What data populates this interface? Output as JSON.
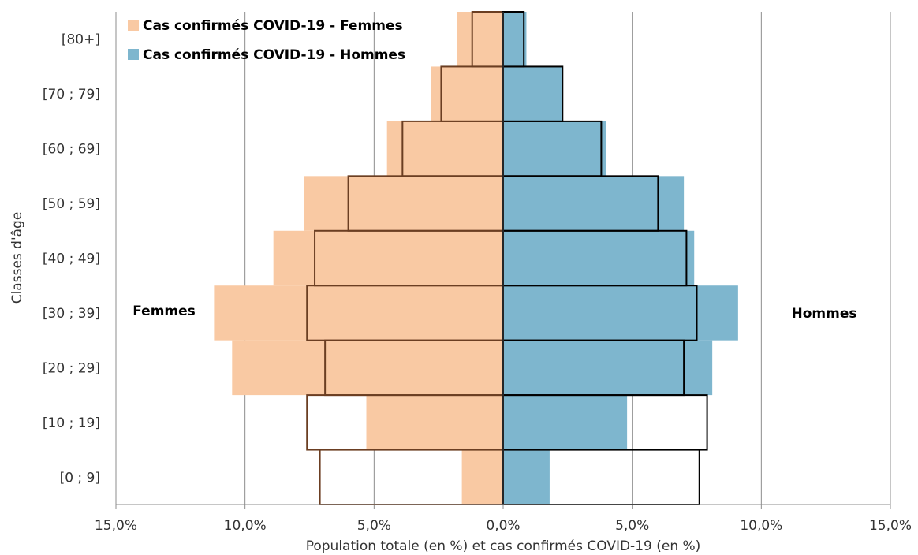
{
  "chart_data": {
    "type": "bar",
    "subtype": "population-pyramid",
    "categories": [
      "[0 ; 9]",
      "[10 ; 19]",
      "[20 ; 29]",
      "[30 ; 39]",
      "[40 ; 49]",
      "[50 ; 59]",
      "[60 ; 69]",
      "[70 ; 79]",
      "[80+]"
    ],
    "series": [
      {
        "name": "Cas confirmés COVID-19 - Femmes",
        "side": "left",
        "color": "#F9C9A3",
        "values": [
          1.6,
          5.3,
          10.5,
          11.2,
          8.9,
          7.7,
          4.5,
          2.8,
          1.8
        ]
      },
      {
        "name": "Cas confirmés COVID-19 - Hommes",
        "side": "right",
        "color": "#7EB6CE",
        "values": [
          1.8,
          4.8,
          8.1,
          9.1,
          7.4,
          7.0,
          4.0,
          2.3,
          0.9
        ]
      }
    ],
    "population_outline": {
      "femmes_values": [
        7.1,
        7.6,
        6.9,
        7.6,
        7.3,
        6.0,
        3.9,
        2.4,
        1.2
      ],
      "hommes_values": [
        7.6,
        7.9,
        7.0,
        7.5,
        7.1,
        6.0,
        3.8,
        2.3,
        0.8
      ],
      "outline_color_femmes": "#6B3E22",
      "outline_color_hommes": "#000000"
    },
    "x_ticks": [
      -15,
      -10,
      -5,
      0,
      5,
      10,
      15
    ],
    "x_tick_labels": [
      "15,0%",
      "10,0%",
      "5,0%",
      "0,0%",
      "5,0%",
      "10,0%",
      "15,0%"
    ],
    "xlim": [
      -15,
      15
    ],
    "xlabel": "Population totale (en %) et cas confirmés COVID-19 (en %)",
    "ylabel": "Classes d'âge",
    "side_labels": {
      "left": "Femmes",
      "right": "Hommes"
    },
    "grid": true,
    "legend_position": "top-left"
  }
}
